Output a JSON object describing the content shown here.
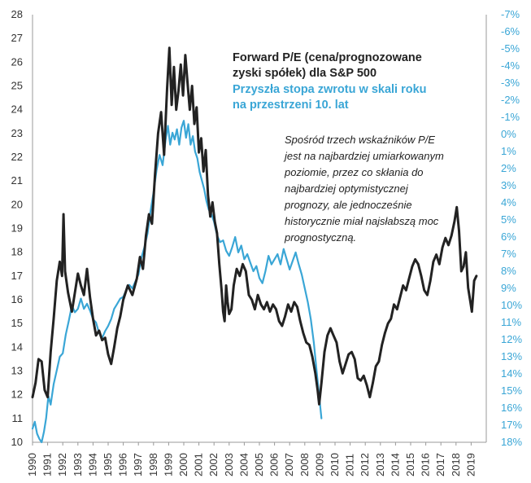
{
  "chart_data": {
    "type": "line",
    "title": "",
    "legend": "top-right",
    "x_labels": [
      "1990",
      "1991",
      "1992",
      "1993",
      "1994",
      "1995",
      "1996",
      "1997",
      "1998",
      "1999",
      "2000",
      "2001",
      "2002",
      "2003",
      "2004",
      "2005",
      "2006",
      "2007",
      "2008",
      "2009",
      "2010",
      "2011",
      "2012",
      "2013",
      "2014",
      "2015",
      "2016",
      "2017",
      "2018",
      "2019"
    ],
    "xlim": [
      1990,
      2020
    ],
    "left_axis": {
      "ylim": [
        10,
        28
      ],
      "ticks": [
        "10",
        "11",
        "12",
        "13",
        "14",
        "15",
        "16",
        "17",
        "18",
        "19",
        "20",
        "21",
        "22",
        "23",
        "24",
        "25",
        "26",
        "27",
        "28"
      ]
    },
    "right_axis": {
      "ylim": [
        -7,
        18
      ],
      "inverted": true,
      "ticks": [
        "-7%",
        "-6%",
        "-5%",
        "-4%",
        "-3%",
        "-2%",
        "-1%",
        "0%",
        "1%",
        "2%",
        "3%",
        "4%",
        "5%",
        "6%",
        "7%",
        "8%",
        "9%",
        "10%",
        "11%",
        "12%",
        "13%",
        "14%",
        "15%",
        "16%",
        "17%",
        "18%"
      ]
    },
    "series": [
      {
        "name": "Forward P/E (cena/prognozowane zyski spółek) dla S&P 500",
        "axis": "left",
        "color": "#222222",
        "points": [
          [
            1990.0,
            11.9
          ],
          [
            1990.2,
            12.5
          ],
          [
            1990.4,
            13.5
          ],
          [
            1990.6,
            13.4
          ],
          [
            1990.8,
            12.2
          ],
          [
            1991.0,
            11.9
          ],
          [
            1991.2,
            13.8
          ],
          [
            1991.4,
            15.2
          ],
          [
            1991.6,
            16.8
          ],
          [
            1991.8,
            17.6
          ],
          [
            1991.95,
            17.0
          ],
          [
            1992.05,
            19.6
          ],
          [
            1992.15,
            17.2
          ],
          [
            1992.35,
            16.3
          ],
          [
            1992.6,
            15.5
          ],
          [
            1992.8,
            16.3
          ],
          [
            1993.0,
            17.1
          ],
          [
            1993.2,
            16.6
          ],
          [
            1993.4,
            16.2
          ],
          [
            1993.6,
            17.3
          ],
          [
            1993.8,
            16.1
          ],
          [
            1994.0,
            15.2
          ],
          [
            1994.2,
            14.5
          ],
          [
            1994.4,
            14.7
          ],
          [
            1994.6,
            14.3
          ],
          [
            1994.8,
            14.4
          ],
          [
            1995.0,
            13.7
          ],
          [
            1995.2,
            13.3
          ],
          [
            1995.4,
            14.0
          ],
          [
            1995.6,
            14.8
          ],
          [
            1995.8,
            15.3
          ],
          [
            1996.0,
            16.0
          ],
          [
            1996.3,
            16.6
          ],
          [
            1996.6,
            16.2
          ],
          [
            1996.9,
            16.9
          ],
          [
            1997.1,
            17.8
          ],
          [
            1997.3,
            17.3
          ],
          [
            1997.5,
            18.7
          ],
          [
            1997.7,
            19.6
          ],
          [
            1997.9,
            19.2
          ],
          [
            1998.1,
            21.3
          ],
          [
            1998.3,
            23.0
          ],
          [
            1998.5,
            23.9
          ],
          [
            1998.7,
            22.1
          ],
          [
            1998.9,
            24.9
          ],
          [
            1999.05,
            26.6
          ],
          [
            1999.2,
            24.2
          ],
          [
            1999.35,
            25.8
          ],
          [
            1999.5,
            24.0
          ],
          [
            1999.65,
            24.8
          ],
          [
            1999.8,
            25.9
          ],
          [
            1999.95,
            24.6
          ],
          [
            2000.1,
            26.3
          ],
          [
            2000.25,
            25.1
          ],
          [
            2000.4,
            24.0
          ],
          [
            2000.55,
            25.0
          ],
          [
            2000.7,
            23.4
          ],
          [
            2000.85,
            24.1
          ],
          [
            2001.0,
            22.2
          ],
          [
            2001.15,
            22.8
          ],
          [
            2001.3,
            21.4
          ],
          [
            2001.45,
            22.3
          ],
          [
            2001.6,
            20.4
          ],
          [
            2001.75,
            19.5
          ],
          [
            2001.9,
            20.1
          ],
          [
            2002.05,
            19.3
          ],
          [
            2002.2,
            18.8
          ],
          [
            2002.35,
            17.5
          ],
          [
            2002.5,
            16.4
          ],
          [
            2002.6,
            15.5
          ],
          [
            2002.7,
            15.1
          ],
          [
            2002.8,
            16.6
          ],
          [
            2002.9,
            15.9
          ],
          [
            2003.0,
            15.4
          ],
          [
            2003.15,
            15.6
          ],
          [
            2003.3,
            16.6
          ],
          [
            2003.5,
            17.3
          ],
          [
            2003.7,
            17.0
          ],
          [
            2003.9,
            17.5
          ],
          [
            2004.1,
            17.2
          ],
          [
            2004.3,
            16.2
          ],
          [
            2004.5,
            16.0
          ],
          [
            2004.7,
            15.6
          ],
          [
            2004.9,
            16.2
          ],
          [
            2005.1,
            15.8
          ],
          [
            2005.3,
            15.6
          ],
          [
            2005.5,
            15.9
          ],
          [
            2005.7,
            15.5
          ],
          [
            2005.9,
            15.8
          ],
          [
            2006.1,
            15.6
          ],
          [
            2006.3,
            15.1
          ],
          [
            2006.5,
            14.9
          ],
          [
            2006.7,
            15.3
          ],
          [
            2006.9,
            15.8
          ],
          [
            2007.1,
            15.5
          ],
          [
            2007.3,
            15.9
          ],
          [
            2007.5,
            15.7
          ],
          [
            2007.7,
            15.1
          ],
          [
            2007.9,
            14.6
          ],
          [
            2008.1,
            14.2
          ],
          [
            2008.3,
            14.1
          ],
          [
            2008.5,
            13.6
          ],
          [
            2008.7,
            12.9
          ],
          [
            2008.85,
            12.2
          ],
          [
            2008.95,
            11.6
          ],
          [
            2009.1,
            12.5
          ],
          [
            2009.3,
            13.8
          ],
          [
            2009.5,
            14.5
          ],
          [
            2009.7,
            14.8
          ],
          [
            2009.9,
            14.5
          ],
          [
            2010.1,
            14.2
          ],
          [
            2010.3,
            13.4
          ],
          [
            2010.5,
            12.9
          ],
          [
            2010.7,
            13.3
          ],
          [
            2010.9,
            13.7
          ],
          [
            2011.1,
            13.8
          ],
          [
            2011.3,
            13.5
          ],
          [
            2011.5,
            12.7
          ],
          [
            2011.7,
            12.6
          ],
          [
            2011.9,
            12.8
          ],
          [
            2012.1,
            12.4
          ],
          [
            2012.3,
            11.9
          ],
          [
            2012.5,
            12.5
          ],
          [
            2012.7,
            13.2
          ],
          [
            2012.9,
            13.4
          ],
          [
            2013.1,
            14.1
          ],
          [
            2013.3,
            14.6
          ],
          [
            2013.5,
            15.0
          ],
          [
            2013.7,
            15.2
          ],
          [
            2013.9,
            15.8
          ],
          [
            2014.1,
            15.6
          ],
          [
            2014.3,
            16.1
          ],
          [
            2014.5,
            16.6
          ],
          [
            2014.7,
            16.4
          ],
          [
            2014.9,
            16.9
          ],
          [
            2015.1,
            17.4
          ],
          [
            2015.3,
            17.7
          ],
          [
            2015.5,
            17.5
          ],
          [
            2015.7,
            17.0
          ],
          [
            2015.9,
            16.4
          ],
          [
            2016.1,
            16.2
          ],
          [
            2016.3,
            16.8
          ],
          [
            2016.5,
            17.6
          ],
          [
            2016.7,
            17.9
          ],
          [
            2016.9,
            17.5
          ],
          [
            2017.1,
            18.2
          ],
          [
            2017.3,
            18.6
          ],
          [
            2017.5,
            18.3
          ],
          [
            2017.7,
            18.7
          ],
          [
            2017.9,
            19.3
          ],
          [
            2018.05,
            19.9
          ],
          [
            2018.2,
            18.9
          ],
          [
            2018.35,
            17.2
          ],
          [
            2018.5,
            17.4
          ],
          [
            2018.65,
            18.0
          ],
          [
            2018.8,
            16.5
          ],
          [
            2018.95,
            15.9
          ],
          [
            2019.05,
            15.5
          ],
          [
            2019.2,
            16.8
          ],
          [
            2019.35,
            17.0
          ]
        ]
      },
      {
        "name": "Przyszła stopa zwrotu w skali roku na przestrzeni 10. lat",
        "axis": "right",
        "color": "#3aa6d6",
        "points": [
          [
            1990.0,
            17.2
          ],
          [
            1990.15,
            16.8
          ],
          [
            1990.3,
            17.5
          ],
          [
            1990.45,
            17.8
          ],
          [
            1990.6,
            18.0
          ],
          [
            1990.75,
            17.4
          ],
          [
            1990.9,
            16.6
          ],
          [
            1991.05,
            15.3
          ],
          [
            1991.2,
            15.8
          ],
          [
            1991.4,
            14.6
          ],
          [
            1991.6,
            13.8
          ],
          [
            1991.8,
            13.0
          ],
          [
            1992.0,
            12.8
          ],
          [
            1992.2,
            11.7
          ],
          [
            1992.4,
            10.9
          ],
          [
            1992.6,
            10.0
          ],
          [
            1992.8,
            10.4
          ],
          [
            1993.0,
            10.2
          ],
          [
            1993.2,
            9.6
          ],
          [
            1993.4,
            10.2
          ],
          [
            1993.6,
            9.9
          ],
          [
            1993.8,
            10.3
          ],
          [
            1994.0,
            10.8
          ],
          [
            1994.2,
            11.0
          ],
          [
            1994.4,
            11.6
          ],
          [
            1994.6,
            11.9
          ],
          [
            1994.8,
            11.5
          ],
          [
            1995.0,
            11.2
          ],
          [
            1995.2,
            10.8
          ],
          [
            1995.4,
            10.2
          ],
          [
            1995.6,
            9.9
          ],
          [
            1995.8,
            9.6
          ],
          [
            1996.0,
            9.5
          ],
          [
            1996.2,
            9.1
          ],
          [
            1996.4,
            8.8
          ],
          [
            1996.6,
            9.0
          ],
          [
            1996.8,
            8.6
          ],
          [
            1997.0,
            8.2
          ],
          [
            1997.2,
            7.2
          ],
          [
            1997.4,
            6.6
          ],
          [
            1997.6,
            5.8
          ],
          [
            1997.8,
            4.5
          ],
          [
            1998.0,
            3.4
          ],
          [
            1998.2,
            2.1
          ],
          [
            1998.4,
            1.2
          ],
          [
            1998.6,
            1.8
          ],
          [
            1998.8,
            0.3
          ],
          [
            1998.95,
            -0.5
          ],
          [
            1999.1,
            0.6
          ],
          [
            1999.25,
            -0.1
          ],
          [
            1999.4,
            0.3
          ],
          [
            1999.55,
            -0.3
          ],
          [
            1999.7,
            0.6
          ],
          [
            1999.85,
            -0.4
          ],
          [
            2000.0,
            -0.8
          ],
          [
            2000.15,
            0.2
          ],
          [
            2000.3,
            -0.6
          ],
          [
            2000.45,
            0.6
          ],
          [
            2000.6,
            0.1
          ],
          [
            2000.75,
            1.0
          ],
          [
            2000.9,
            1.4
          ],
          [
            2001.05,
            2.2
          ],
          [
            2001.2,
            2.7
          ],
          [
            2001.35,
            3.2
          ],
          [
            2001.5,
            3.9
          ],
          [
            2001.65,
            4.4
          ],
          [
            2001.8,
            4.6
          ],
          [
            2002.0,
            5.1
          ],
          [
            2002.2,
            5.9
          ],
          [
            2002.4,
            6.3
          ],
          [
            2002.6,
            6.2
          ],
          [
            2002.8,
            6.8
          ],
          [
            2003.0,
            7.1
          ],
          [
            2003.2,
            6.6
          ],
          [
            2003.4,
            6.0
          ],
          [
            2003.6,
            6.9
          ],
          [
            2003.8,
            6.5
          ],
          [
            2004.0,
            7.3
          ],
          [
            2004.2,
            7.0
          ],
          [
            2004.4,
            7.5
          ],
          [
            2004.6,
            8.0
          ],
          [
            2004.8,
            7.7
          ],
          [
            2005.0,
            8.4
          ],
          [
            2005.2,
            8.7
          ],
          [
            2005.4,
            8.0
          ],
          [
            2005.6,
            7.1
          ],
          [
            2005.8,
            7.6
          ],
          [
            2006.0,
            7.3
          ],
          [
            2006.2,
            7.0
          ],
          [
            2006.4,
            7.6
          ],
          [
            2006.6,
            6.7
          ],
          [
            2006.8,
            7.3
          ],
          [
            2007.0,
            7.9
          ],
          [
            2007.2,
            7.4
          ],
          [
            2007.4,
            6.9
          ],
          [
            2007.6,
            7.6
          ],
          [
            2007.8,
            8.2
          ],
          [
            2008.0,
            9.0
          ],
          [
            2008.2,
            9.8
          ],
          [
            2008.4,
            10.8
          ],
          [
            2008.6,
            12.2
          ],
          [
            2008.8,
            14.0
          ],
          [
            2008.95,
            15.3
          ],
          [
            2009.1,
            16.6
          ]
        ]
      }
    ]
  },
  "legend": {
    "black_label": "Forward P/E (cena/prognozowane zyski spółek) dla S&P 500",
    "blue_label": "Przyszła stopa zwrotu w skali roku na przestrzeni 10. lat"
  },
  "annotation": "Spośród trzech wskaźników P/E jest na najbardziej umiarkowanym poziomie, przez co skłania do najbardziej optymistycznej prognozy, ale jednocześnie historycznie miał najsłabszą moc prognostyczną."
}
